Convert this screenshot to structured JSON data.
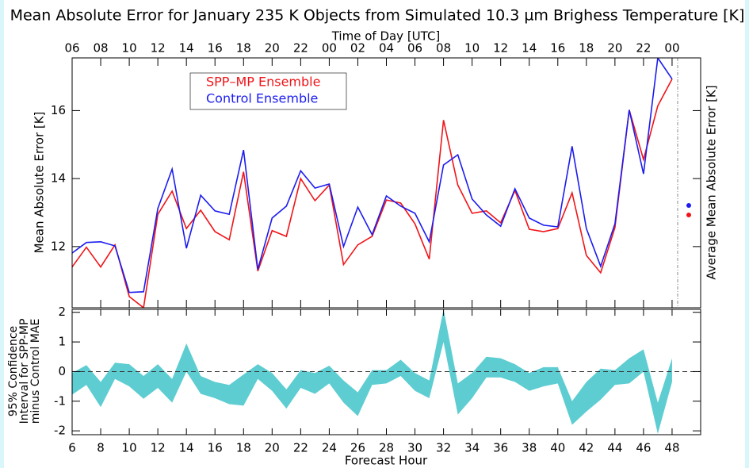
{
  "chart_data": [
    {
      "type": "line",
      "title": "Mean Absolute Error for January 235 K Objects from Simulated 10.3 µm Brighess Temperature [K]",
      "ylabel": "Mean Absolute Error [K]",
      "y2label": "Average Mean Absolute Error [K]",
      "x2label": "Time of Day [UTC]",
      "x": [
        6,
        7,
        8,
        9,
        10,
        11,
        12,
        13,
        14,
        15,
        16,
        17,
        18,
        19,
        20,
        21,
        22,
        23,
        24,
        25,
        26,
        27,
        28,
        29,
        30,
        31,
        32,
        33,
        34,
        35,
        36,
        37,
        38,
        39,
        40,
        41,
        42,
        43,
        44,
        45,
        46,
        47,
        48
      ],
      "xlim": [
        6,
        50
      ],
      "x2ticks": [
        {
          "value": 6,
          "label": "06"
        },
        {
          "value": 8,
          "label": "08"
        },
        {
          "value": 10,
          "label": "10"
        },
        {
          "value": 12,
          "label": "12"
        },
        {
          "value": 14,
          "label": "14"
        },
        {
          "value": 16,
          "label": "16"
        },
        {
          "value": 18,
          "label": "18"
        },
        {
          "value": 20,
          "label": "20"
        },
        {
          "value": 22,
          "label": "22"
        },
        {
          "value": 24,
          "label": "00"
        },
        {
          "value": 26,
          "label": "02"
        },
        {
          "value": 28,
          "label": "04"
        },
        {
          "value": 30,
          "label": "06"
        },
        {
          "value": 32,
          "label": "08"
        },
        {
          "value": 34,
          "label": "10"
        },
        {
          "value": 36,
          "label": "12"
        },
        {
          "value": 38,
          "label": "14"
        },
        {
          "value": 40,
          "label": "16"
        },
        {
          "value": 42,
          "label": "18"
        },
        {
          "value": 44,
          "label": "20"
        },
        {
          "value": 46,
          "label": "22"
        },
        {
          "value": 48,
          "label": "00"
        }
      ],
      "ylim": [
        10.2,
        17.55
      ],
      "yticks": [
        12,
        14,
        16
      ],
      "legend": "upper left",
      "series": [
        {
          "name": "SPP–MP Ensemble",
          "color": "#f01418",
          "average": 12.93,
          "values": [
            11.4,
            11.98,
            11.4,
            12.05,
            10.53,
            10.2,
            12.95,
            13.63,
            12.53,
            13.07,
            12.44,
            12.2,
            14.2,
            11.28,
            12.47,
            12.3,
            14.0,
            13.35,
            13.81,
            11.47,
            12.05,
            12.3,
            13.37,
            13.28,
            12.67,
            11.63,
            15.72,
            13.81,
            12.98,
            13.05,
            12.7,
            13.65,
            12.51,
            12.44,
            12.53,
            13.58,
            11.74,
            11.23,
            12.56,
            16.02,
            14.56,
            16.14,
            16.93
          ]
        },
        {
          "name": "Control Ensemble",
          "color": "#1c1cf0",
          "average": 13.21,
          "values": [
            11.81,
            12.12,
            12.14,
            12.02,
            10.65,
            10.67,
            13.12,
            14.28,
            11.95,
            13.51,
            13.05,
            12.95,
            14.84,
            11.33,
            12.84,
            13.19,
            14.23,
            13.72,
            13.84,
            12.0,
            13.16,
            12.35,
            13.49,
            13.19,
            12.98,
            12.14,
            14.4,
            14.7,
            13.4,
            12.93,
            12.6,
            13.7,
            12.84,
            12.63,
            12.58,
            14.95,
            12.53,
            11.42,
            12.67,
            16.02,
            14.14,
            17.55,
            16.93
          ]
        }
      ]
    },
    {
      "type": "band",
      "ylabel": [
        "95% Confidence",
        "Interval for SPP-MP",
        "minus Control MAE"
      ],
      "xlabel": "Forecast Hour",
      "x": [
        6,
        7,
        8,
        9,
        10,
        11,
        12,
        13,
        14,
        15,
        16,
        17,
        18,
        19,
        20,
        21,
        22,
        23,
        24,
        25,
        26,
        27,
        28,
        29,
        30,
        31,
        32,
        33,
        34,
        35,
        36,
        37,
        38,
        39,
        40,
        41,
        42,
        43,
        44,
        45,
        46,
        47,
        48
      ],
      "xlim": [
        6,
        50
      ],
      "xticks": [
        6,
        8,
        10,
        12,
        14,
        16,
        18,
        20,
        22,
        24,
        26,
        28,
        30,
        32,
        34,
        36,
        38,
        40,
        42,
        44,
        46,
        48
      ],
      "ylim": [
        -2.13,
        2.1
      ],
      "yticks": [
        -2,
        -1,
        0,
        1,
        2
      ],
      "hline": 0,
      "color": "#5ecdd2",
      "upper": [
        -0.05,
        0.22,
        -0.35,
        0.3,
        0.25,
        -0.15,
        0.25,
        -0.25,
        0.95,
        -0.15,
        -0.35,
        -0.45,
        -0.1,
        0.25,
        -0.05,
        -0.6,
        0.05,
        -0.05,
        0.2,
        -0.3,
        -0.7,
        0.05,
        0.05,
        0.4,
        -0.05,
        -0.3,
        2.1,
        -0.4,
        -0.05,
        0.5,
        0.45,
        0.25,
        -0.05,
        0.15,
        0.15,
        -1.0,
        -0.35,
        0.1,
        0.05,
        0.45,
        0.75,
        -1.05,
        0.45
      ],
      "lower": [
        -0.78,
        -0.45,
        -1.2,
        -0.25,
        -0.5,
        -0.92,
        -0.55,
        -1.05,
        0.0,
        -0.75,
        -0.9,
        -1.1,
        -1.15,
        -0.25,
        -0.65,
        -1.25,
        -0.55,
        -0.75,
        -0.4,
        -1.05,
        -1.5,
        -0.45,
        -0.4,
        -0.15,
        -0.65,
        -0.9,
        1.0,
        -1.45,
        -0.9,
        -0.2,
        -0.2,
        -0.35,
        -0.65,
        -0.5,
        -0.4,
        -1.8,
        -1.35,
        -0.95,
        -0.45,
        -0.4,
        0.0,
        -2.1,
        -0.35
      ]
    }
  ]
}
